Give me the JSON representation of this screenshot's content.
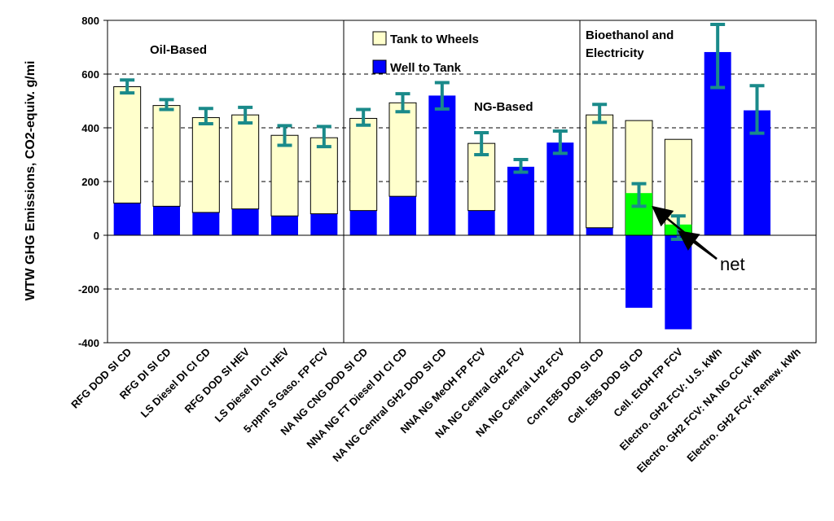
{
  "chart_data": {
    "type": "bar",
    "title": "",
    "ylabel": "WTW GHG Emissions, CO2-equiv. g/mi",
    "ylim": [
      -400,
      800
    ],
    "yticks": [
      -400,
      -200,
      0,
      200,
      400,
      600,
      800
    ],
    "grid": "dashed horizontal",
    "categories": [
      "RFG DOD SI CD",
      "RFG DI SI CD",
      "LS Diesel DI CI CD",
      "RFG DOD SI HEV",
      "LS Diesel DI CI HEV",
      "5-ppm S Gaso. FP FCV",
      "NA NG CNG DOD SI CD",
      "NNA NG FT Diesel DI CI CD",
      "NA NG Central GH2 DOD SI CD",
      "NNA NG MeOH FP FCV",
      "NA NG Central GH2 FCV",
      "NA NG Central LH2 FCV",
      "Corn E85 DOD SI CD",
      "Cell. E85 DOD SI CD",
      "Cell. EtOH FP FCV",
      "Electro. GH2 FCV: U.S. kWh",
      "Electro. GH2 FCV: NA NG CC kWh",
      "Electro. GH2 FCV: Renew. kWh"
    ],
    "series": [
      {
        "name": "Well to Tank",
        "color": "#0000ff",
        "values": [
          120,
          108,
          85,
          98,
          72,
          80,
          92,
          145,
          520,
          92,
          255,
          345,
          28,
          -270,
          -350,
          682,
          465,
          0
        ]
      },
      {
        "name": "Tank to Wheels",
        "color": "#ffffcc",
        "values": [
          433,
          375,
          353,
          350,
          300,
          283,
          343,
          348,
          0,
          250,
          0,
          0,
          420,
          427,
          357,
          0,
          0,
          0
        ]
      }
    ],
    "net": {
      "name": "net",
      "color": "#00ff00",
      "values": [
        null,
        null,
        null,
        null,
        null,
        null,
        null,
        null,
        null,
        null,
        null,
        null,
        null,
        157,
        40,
        null,
        null,
        null
      ]
    },
    "error_bars": {
      "color": "#1a8a8a",
      "low": [
        530,
        468,
        415,
        418,
        335,
        330,
        410,
        460,
        470,
        300,
        235,
        305,
        420,
        108,
        -15,
        550,
        380,
        null
      ],
      "high": [
        578,
        505,
        472,
        476,
        408,
        405,
        468,
        527,
        568,
        382,
        282,
        388,
        487,
        192,
        72,
        785,
        557,
        null
      ]
    },
    "group_labels": [
      "Oil-Based",
      "NG-Based",
      "Bioethanol and Electricity"
    ],
    "legend": [
      "Tank to Wheels",
      "Well to Tank"
    ],
    "annotation": "net",
    "legend_position": "top-center"
  }
}
